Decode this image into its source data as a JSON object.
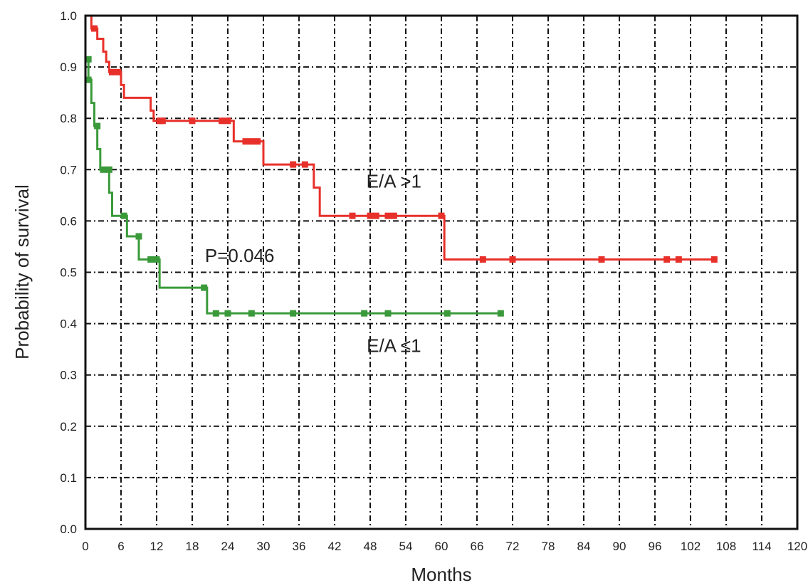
{
  "chart_data": {
    "type": "line",
    "xlabel": "Months",
    "ylabel": "Probability of survival",
    "xlim": [
      0,
      120
    ],
    "ylim": [
      0.0,
      1.0
    ],
    "x_ticks": [
      0,
      6,
      12,
      18,
      24,
      30,
      36,
      42,
      48,
      54,
      60,
      66,
      72,
      78,
      84,
      90,
      96,
      102,
      108,
      114,
      120
    ],
    "y_ticks": [
      "0.0",
      "0.1",
      "0.2",
      "0.3",
      "0.4",
      "0.5",
      "0.6",
      "0.7",
      "0.8",
      "0.9",
      "1.0"
    ],
    "grid": true,
    "annotations": [
      {
        "text": "E/A >1",
        "x": 52,
        "y": 0.665
      },
      {
        "text": "P=0.046",
        "x": 26,
        "y": 0.52
      },
      {
        "text": "E/A ≤1",
        "x": 52,
        "y": 0.345
      }
    ],
    "series": [
      {
        "name": "E/A >1",
        "color": "#e8302a",
        "steps": [
          [
            0,
            1.0
          ],
          [
            1,
            0.975
          ],
          [
            2,
            0.955
          ],
          [
            3,
            0.93
          ],
          [
            3.5,
            0.91
          ],
          [
            4,
            0.89
          ],
          [
            6,
            0.865
          ],
          [
            6.5,
            0.84
          ],
          [
            11,
            0.815
          ],
          [
            11.5,
            0.795
          ],
          [
            25,
            0.755
          ],
          [
            30,
            0.71
          ],
          [
            38.5,
            0.665
          ],
          [
            39.5,
            0.61
          ],
          [
            60.5,
            0.525
          ],
          [
            106,
            0.525
          ]
        ],
        "censored": [
          [
            1.5,
            0.975
          ],
          [
            4.5,
            0.89
          ],
          [
            5.5,
            0.89
          ],
          [
            12.5,
            0.795
          ],
          [
            13,
            0.795
          ],
          [
            18,
            0.795
          ],
          [
            23,
            0.795
          ],
          [
            24,
            0.795
          ],
          [
            27,
            0.755
          ],
          [
            28,
            0.755
          ],
          [
            29,
            0.755
          ],
          [
            35,
            0.71
          ],
          [
            37,
            0.71
          ],
          [
            45,
            0.61
          ],
          [
            48,
            0.61
          ],
          [
            49,
            0.61
          ],
          [
            51,
            0.61
          ],
          [
            52,
            0.61
          ],
          [
            60,
            0.61
          ],
          [
            67,
            0.525
          ],
          [
            72,
            0.525
          ],
          [
            87,
            0.525
          ],
          [
            98,
            0.525
          ],
          [
            100,
            0.525
          ],
          [
            106,
            0.525
          ]
        ]
      },
      {
        "name": "E/A ≤1",
        "color": "#3a9a3a",
        "steps": [
          [
            0,
            0.915
          ],
          [
            0.5,
            0.875
          ],
          [
            1,
            0.83
          ],
          [
            1.5,
            0.785
          ],
          [
            2,
            0.74
          ],
          [
            2.5,
            0.7
          ],
          [
            4,
            0.655
          ],
          [
            4.5,
            0.61
          ],
          [
            7,
            0.57
          ],
          [
            9,
            0.525
          ],
          [
            12.5,
            0.47
          ],
          [
            20.5,
            0.42
          ],
          [
            70,
            0.42
          ]
        ],
        "censored": [
          [
            0.5,
            0.915
          ],
          [
            0.5,
            0.875
          ],
          [
            2,
            0.785
          ],
          [
            3,
            0.7
          ],
          [
            4,
            0.7
          ],
          [
            6.5,
            0.61
          ],
          [
            9,
            0.57
          ],
          [
            11,
            0.525
          ],
          [
            12,
            0.525
          ],
          [
            20,
            0.47
          ],
          [
            22,
            0.42
          ],
          [
            24,
            0.42
          ],
          [
            28,
            0.42
          ],
          [
            35,
            0.42
          ],
          [
            47,
            0.42
          ],
          [
            51,
            0.42
          ],
          [
            61,
            0.42
          ],
          [
            70,
            0.42
          ]
        ]
      }
    ]
  }
}
